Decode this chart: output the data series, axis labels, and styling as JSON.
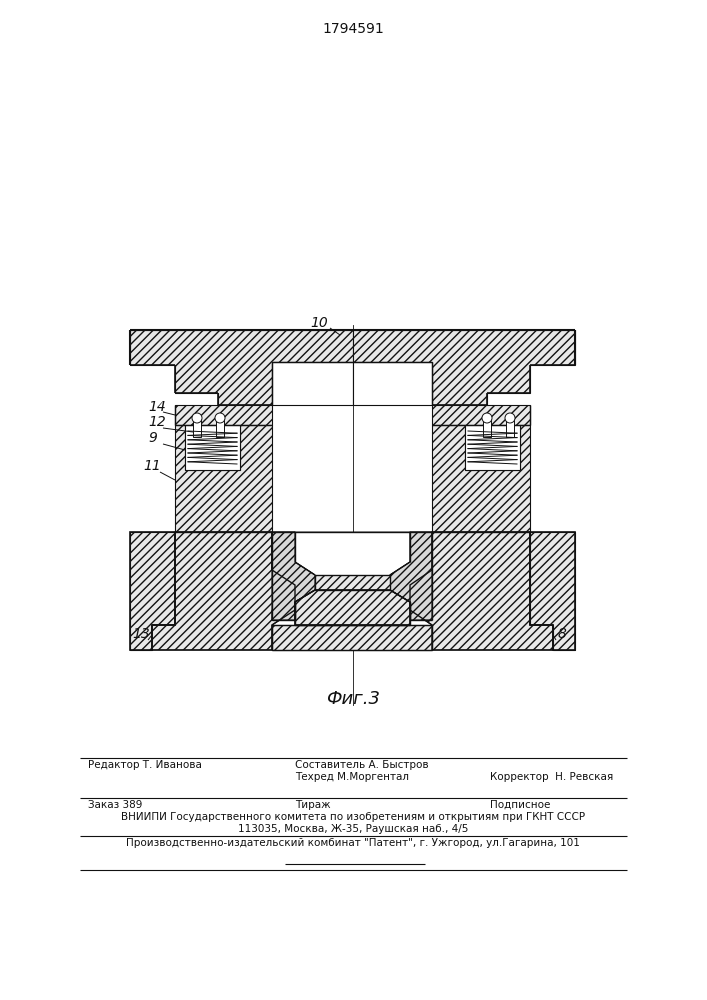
{
  "patent_number": "1794591",
  "fig_label": "Фиг.3",
  "background_color": "#ffffff",
  "line_color": "#111111",
  "footer": {
    "sestavitel": "Составитель А. Быстров",
    "tehred": "Техред М.Моргентал",
    "korrektor": "Корректор  Н. Ревская",
    "redaktor": "Редактор Т. Иванова",
    "zakaz": "Заказ 389",
    "tirazh": "Тираж",
    "podpisnoe": "Подписное",
    "vniipи": "ВНИИПИ Государственного комитета по изобретениям и открытиям при ГКНТ СССР",
    "address": "113035, Москва, Ж-35, Раушская наб., 4/5",
    "kombnat": "Производственно-издательский комбинат \"Патент\", г. Ужгород, ул.Гагарина, 101"
  }
}
